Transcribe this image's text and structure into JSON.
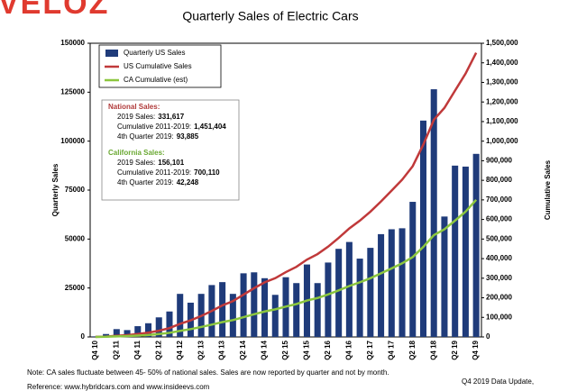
{
  "logo": "VELOZ",
  "chart_data": {
    "type": "bar",
    "title": "Quarterly Sales of Electric Cars",
    "y_label": "Quarterly Sales",
    "y2_label": "Cumulative Sales",
    "categories": [
      "Q4 10",
      null,
      "Q2 11",
      null,
      "Q4 11",
      null,
      "Q2 12",
      null,
      "Q4 12",
      null,
      "Q2 13",
      null,
      "Q4 13",
      null,
      "Q2 14",
      null,
      "Q4 14",
      null,
      "Q2 15",
      null,
      "Q4 15",
      null,
      "Q2 16",
      null,
      "Q4 16",
      null,
      "Q2 17",
      null,
      "Q4 17",
      null,
      "Q2 18",
      null,
      "Q4 18",
      null,
      "Q2 19",
      null,
      "Q4 19"
    ],
    "series": [
      {
        "name": "Quarterly US Sales",
        "type": "bar",
        "color": "#1f3b7a",
        "values": [
          300,
          1500,
          4000,
          3500,
          5500,
          7000,
          10000,
          13000,
          22000,
          17500,
          22000,
          26500,
          28000,
          22000,
          32500,
          33000,
          30000,
          21500,
          30500,
          27500,
          37000,
          27500,
          38000,
          45000,
          48500,
          40000,
          45500,
          52500,
          55000,
          55500,
          69000,
          110500,
          126500,
          61500,
          87500,
          87000,
          93500
        ]
      },
      {
        "name": "US Cumulative Sales",
        "type": "line",
        "axis": "y2",
        "color": "#c0393a",
        "values": [
          300,
          1800,
          6000,
          9500,
          15000,
          22000,
          32000,
          45000,
          67000,
          85000,
          107000,
          133000,
          161000,
          183000,
          216000,
          249000,
          279000,
          300000,
          331000,
          358000,
          395000,
          423000,
          461000,
          506000,
          554000,
          594000,
          640000,
          692000,
          747000,
          803000,
          872000,
          982000,
          1109000,
          1170000,
          1258000,
          1345000,
          1451404
        ]
      },
      {
        "name": "CA Cumulative (est)",
        "type": "line",
        "axis": "y2",
        "color": "#8cc63e",
        "values": [
          150,
          900,
          3000,
          4500,
          7000,
          10000,
          15000,
          21000,
          31000,
          40000,
          51000,
          63000,
          76000,
          86000,
          101000,
          116000,
          130000,
          141000,
          155000,
          168000,
          186000,
          199000,
          217000,
          238000,
          260000,
          279000,
          300000,
          325000,
          350000,
          376000,
          408000,
          460000,
          520000,
          550000,
          594000,
          640000,
          700110
        ]
      }
    ],
    "ylim": [
      0,
      150000
    ],
    "yticks": [
      0,
      25000,
      50000,
      75000,
      100000,
      125000,
      150000
    ],
    "y2lim": [
      0,
      1500000
    ],
    "y2ticks": [
      0,
      {
        "value": 100000,
        "label": "100,000"
      },
      {
        "value": 200000,
        "label": "200,000"
      },
      {
        "value": 300000,
        "label": "300,000"
      },
      {
        "value": 400000,
        "label": "400,000"
      },
      {
        "value": 500000,
        "label": "500,000"
      },
      {
        "value": 600000,
        "label": "600,000"
      },
      {
        "value": 700000,
        "label": "700,000"
      },
      {
        "value": 800000,
        "label": "800,000"
      },
      {
        "value": 900000,
        "label": "900,000"
      },
      {
        "value": 1000000,
        "label": "1,000,000"
      },
      {
        "value": 1100000,
        "label": "1,100,000"
      },
      {
        "value": 1200000,
        "label": "1,200,000"
      },
      {
        "value": 1300000,
        "label": "1,300,000"
      },
      {
        "value": 1400000,
        "label": "1,400,000"
      },
      {
        "value": 1500000,
        "label": "1,500,000"
      }
    ],
    "grid": false,
    "annotations": [
      {
        "heading": "National Sales:",
        "color": "#b03a3a",
        "lines": [
          {
            "label": "2019 Sales:",
            "value": "331,617"
          },
          {
            "label": "Cumulative 2011-2019:",
            "value": "1,451,404"
          },
          {
            "label": "4th Quarter 2019:",
            "value": "93,885"
          }
        ]
      },
      {
        "heading": "California Sales:",
        "color": "#6aa832",
        "lines": [
          {
            "label": "2019 Sales:",
            "value": "156,101"
          },
          {
            "label": "Cumulative 2011-2019:",
            "value": "700,110"
          },
          {
            "label": "4th Quarter 2019:",
            "value": "42,248"
          }
        ]
      }
    ]
  },
  "footer": {
    "note": "Note: CA sales fluctuate between 45- 50% of national sales.  Sales are now reported by quarter and not by month.",
    "reference": "Reference: www.hybridcars.com and www.insideevs.com",
    "update": "Q4 2019 Data Update,"
  }
}
